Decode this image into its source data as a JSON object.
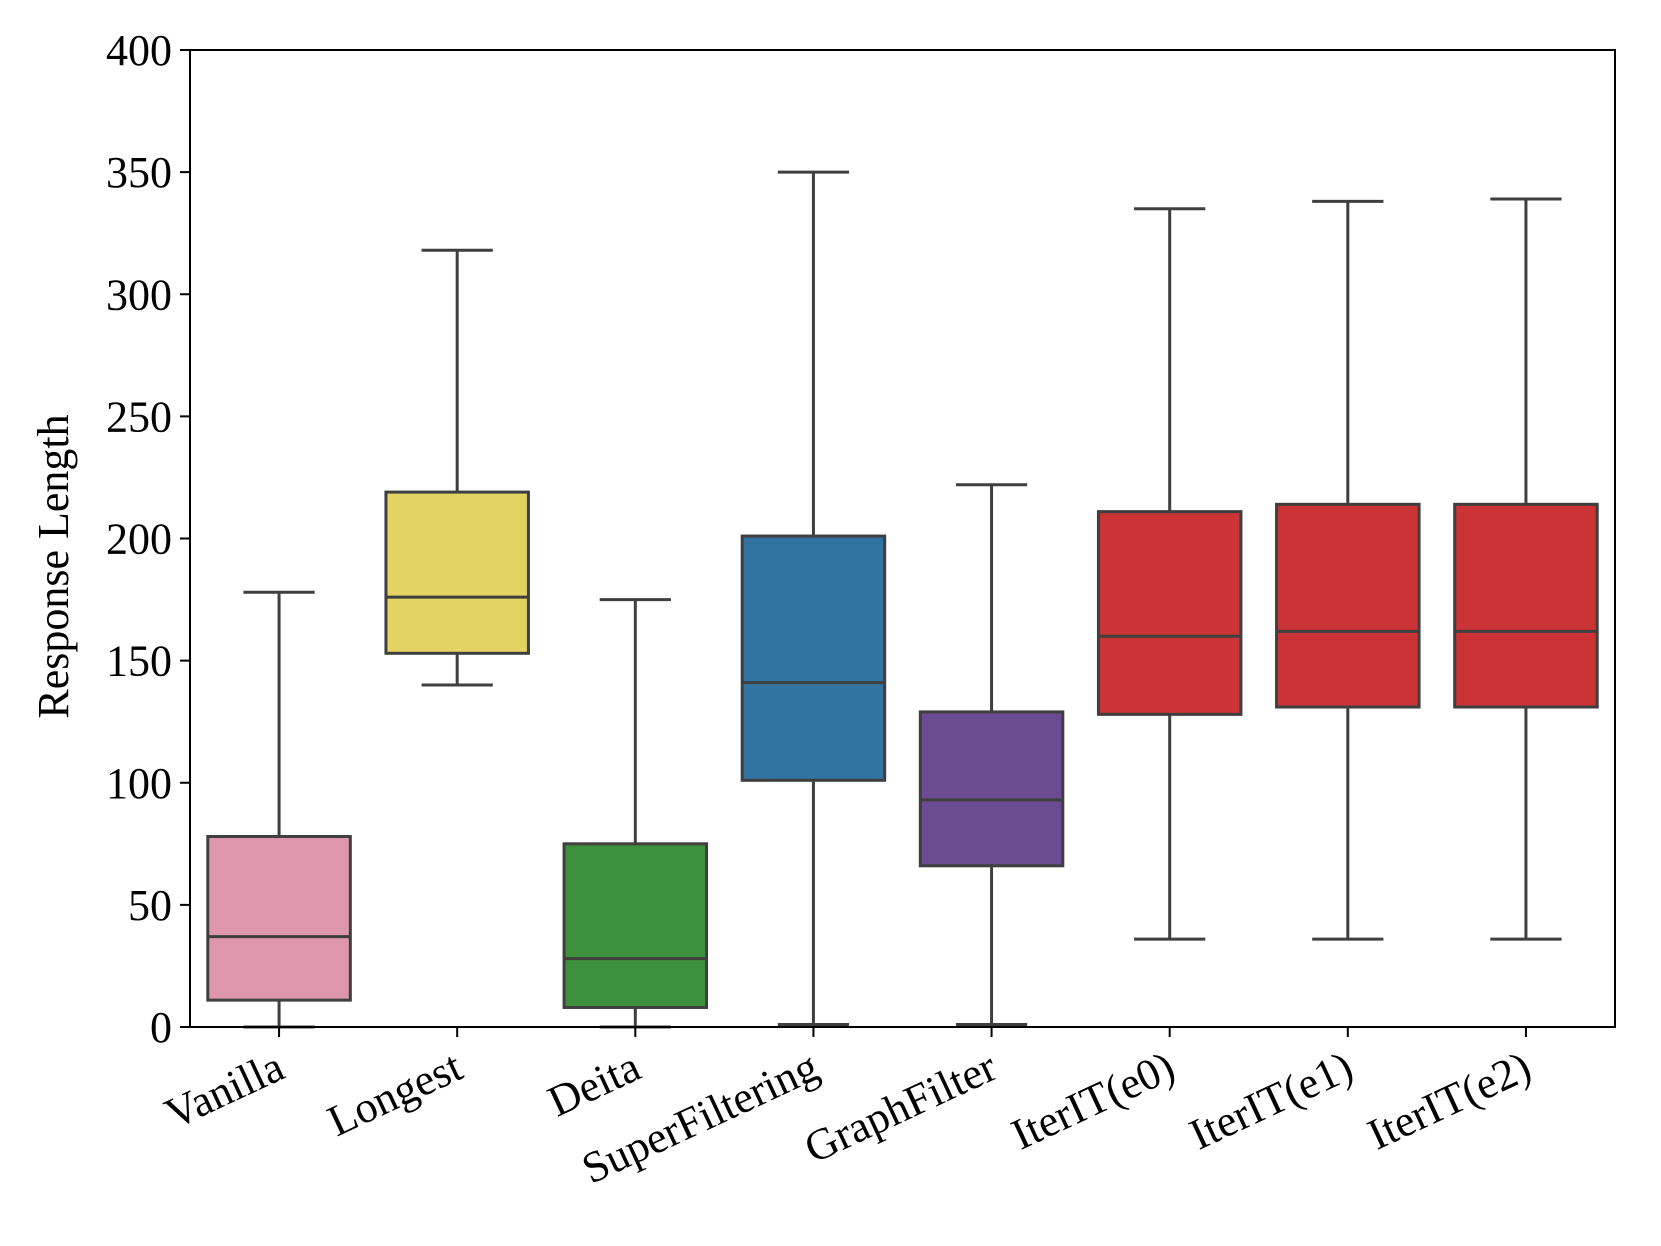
{
  "chart_data": {
    "type": "box",
    "title": "",
    "xlabel": "",
    "ylabel": "Response Length",
    "ylim": [
      0,
      400
    ],
    "yticks": [
      0,
      50,
      100,
      150,
      200,
      250,
      300,
      350,
      400
    ],
    "grid": false,
    "categories": [
      "Vanilla",
      "Longest",
      "Deita",
      "SuperFiltering",
      "GraphFilter",
      "IterIT(e0)",
      "IterIT(e1)",
      "IterIT(e2)"
    ],
    "boxes": [
      {
        "name": "Vanilla",
        "whisker_low": 0,
        "q1": 11,
        "median": 37,
        "q3": 78,
        "whisker_high": 178,
        "color": "#de96ad"
      },
      {
        "name": "Longest",
        "whisker_low": 140,
        "q1": 153,
        "median": 176,
        "q3": 219,
        "whisker_high": 318,
        "color": "#e3d362"
      },
      {
        "name": "Deita",
        "whisker_low": 0,
        "q1": 8,
        "median": 28,
        "q3": 75,
        "whisker_high": 175,
        "color": "#3d913d"
      },
      {
        "name": "SuperFiltering",
        "whisker_low": 1,
        "q1": 101,
        "median": 141,
        "q3": 201,
        "whisker_high": 350,
        "color": "#3274a1"
      },
      {
        "name": "GraphFilter",
        "whisker_low": 1,
        "q1": 66,
        "median": 93,
        "q3": 129,
        "whisker_high": 222,
        "color": "#6b4b92"
      },
      {
        "name": "IterIT(e0)",
        "whisker_low": 36,
        "q1": 128,
        "median": 160,
        "q3": 211,
        "whisker_high": 335,
        "color": "#cb3335"
      },
      {
        "name": "IterIT(e1)",
        "whisker_low": 36,
        "q1": 131,
        "median": 162,
        "q3": 214,
        "whisker_high": 338,
        "color": "#cb3335"
      },
      {
        "name": "IterIT(e2)",
        "whisker_low": 36,
        "q1": 131,
        "median": 162,
        "q3": 214,
        "whisker_high": 339,
        "color": "#cb3335"
      }
    ],
    "line_color": "#3f3f3f"
  }
}
